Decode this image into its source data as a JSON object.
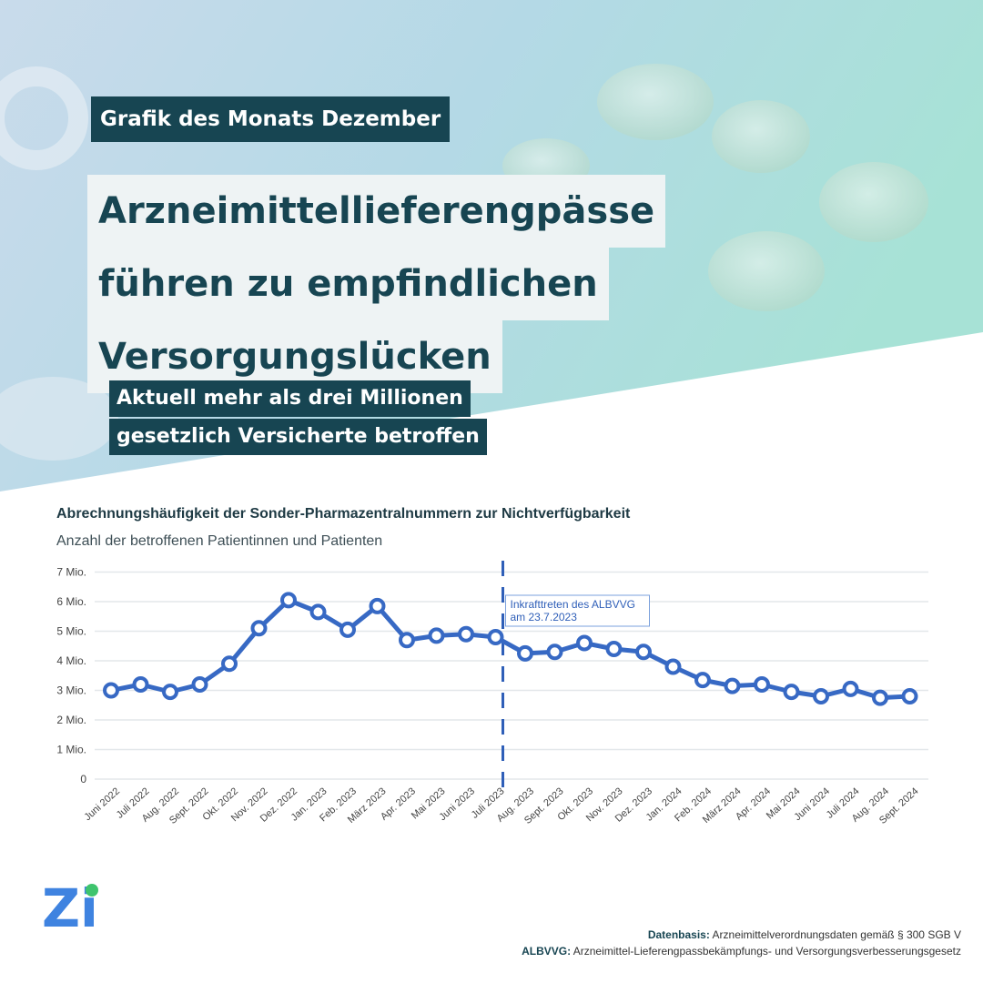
{
  "header": {
    "badge": "Grafik des Monats Dezember",
    "headline_lines": [
      "Arzneimittellieferengpässe",
      "führen zu empfindlichen",
      "Versorgungslücken"
    ],
    "subline_lines": [
      "Aktuell mehr als drei Millionen",
      "gesetzlich Versicherte betroffen"
    ]
  },
  "colors": {
    "dark_teal": "#174552",
    "line_blue": "#3769c4",
    "headline_bg": "#eef3f4"
  },
  "chart_data": {
    "type": "line",
    "title": "Abrechnungshäufigkeit der Sonder-Pharmazentralnummern zur Nichtverfügbarkeit",
    "subtitle": "Anzahl der betroffenen Patientinnen und Patienten",
    "categories": [
      "Juni 2022",
      "Juli 2022",
      "Aug. 2022",
      "Sept. 2022",
      "Okt. 2022",
      "Nov. 2022",
      "Dez. 2022",
      "Jan. 2023",
      "Feb. 2023",
      "März 2023",
      "Apr. 2023",
      "Mai 2023",
      "Juni 2023",
      "Juli 2023",
      "Aug. 2023",
      "Sept. 2023",
      "Okt. 2023",
      "Nov. 2023",
      "Dez. 2023",
      "Jan. 2024",
      "Feb. 2024",
      "März 2024",
      "Apr. 2024",
      "Mai 2024",
      "Juni 2024",
      "Juli 2024",
      "Aug. 2024",
      "Sept. 2024"
    ],
    "values": [
      3.0,
      3.2,
      2.95,
      3.2,
      3.9,
      5.1,
      6.05,
      5.65,
      5.05,
      5.85,
      4.7,
      4.85,
      4.9,
      4.8,
      4.25,
      4.3,
      4.6,
      4.4,
      4.3,
      3.8,
      3.35,
      3.15,
      3.2,
      2.95,
      2.8,
      3.05,
      2.75,
      2.8
    ],
    "yticks": [
      "0",
      "1 Mio.",
      "2 Mio.",
      "3 Mio.",
      "4 Mio.",
      "5 Mio.",
      "6 Mio.",
      "7 Mio."
    ],
    "ylim": [
      0,
      7
    ],
    "unit": "Mio.",
    "grid": true,
    "annotation": {
      "category": "Juli 2023",
      "lines": [
        "Inkrafttreten des ALBVVG",
        "am 23.7.2023"
      ]
    }
  },
  "logo_text": "Zi",
  "footer": {
    "line1_label": "Datenbasis:",
    "line1_text": " Arzneimittelverordnungsdaten gemäß § 300 SGB V",
    "line2_label": "ALBVVG:",
    "line2_text": " Arzneimittel-Lieferengpassbekämpfungs- und Versorgungsverbesserungsgesetz"
  }
}
